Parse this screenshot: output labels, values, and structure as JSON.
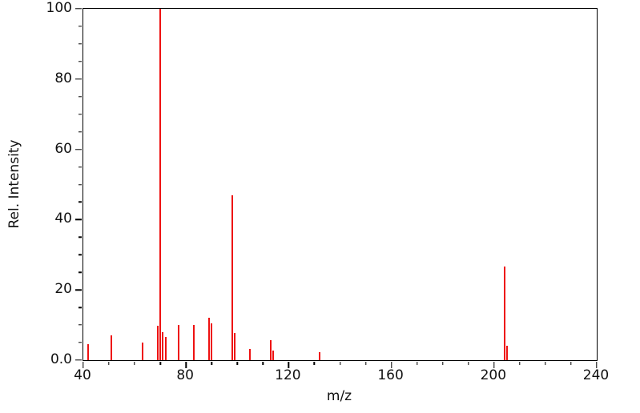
{
  "chart_data": {
    "type": "bar",
    "subtype": "mass-spectrum-stick-plot",
    "title": "",
    "xlabel": "m/z",
    "ylabel": "Rel. Intensity",
    "xlim": [
      40,
      240
    ],
    "ylim": [
      0,
      100
    ],
    "x_major_ticks": [
      40,
      80,
      120,
      160,
      200,
      240
    ],
    "x_tick_labels": [
      "40",
      "80",
      "120",
      "160",
      "200",
      "240"
    ],
    "x_minor_step": 10,
    "y_major_ticks": [
      0,
      20,
      40,
      60,
      80,
      100
    ],
    "y_tick_labels": [
      "0.0",
      "20",
      "40",
      "60",
      "80",
      "100"
    ],
    "y_minor_step": 5,
    "grid": false,
    "legend": false,
    "bar_color": "#ee1111",
    "axis_color": "#000000",
    "background_color": "#ffffff",
    "series": [
      {
        "name": "relative intensity",
        "points": [
          [
            42,
            4.5
          ],
          [
            51,
            7.1
          ],
          [
            63,
            5.1
          ],
          [
            69,
            9.9
          ],
          [
            70,
            100.0
          ],
          [
            71,
            7.9
          ],
          [
            72,
            6.5
          ],
          [
            77,
            10.1
          ],
          [
            83,
            10.1
          ],
          [
            89,
            12.1
          ],
          [
            90,
            10.4
          ],
          [
            98,
            47.0
          ],
          [
            99,
            7.7
          ],
          [
            105,
            3.2
          ],
          [
            113,
            5.6
          ],
          [
            114,
            2.7
          ],
          [
            132,
            2.3
          ],
          [
            204,
            26.6
          ],
          [
            205,
            4.2
          ]
        ]
      }
    ]
  }
}
